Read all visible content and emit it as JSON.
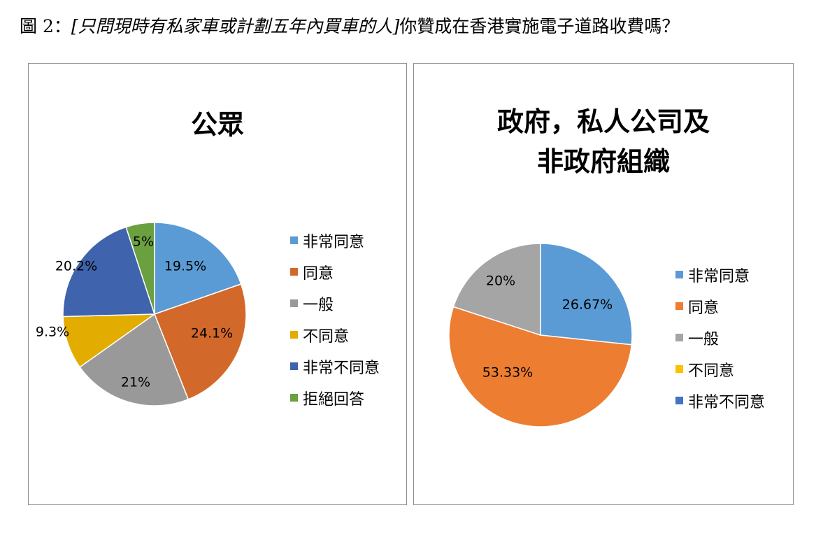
{
  "figure_title": {
    "prefix": "圖 2：",
    "italic_part": "[只問現時有私家車或計劃五年內買車的人]",
    "question": "你贊成在香港實施電子道路收費嗎？"
  },
  "chart_data": [
    {
      "type": "pie",
      "title": "公眾",
      "categories": [
        "非常同意",
        "同意",
        "一般",
        "不同意",
        "非常不同意",
        "拒絕回答"
      ],
      "values": [
        19.5,
        24.1,
        21,
        9.3,
        20.2,
        5
      ],
      "data_labels": [
        "19.5%",
        "24.1%",
        "21%",
        "9.3%",
        "20.2%",
        "5%"
      ],
      "colors": [
        "#5b9bd5",
        "#d2692a",
        "#999999",
        "#e2ac00",
        "#3f63ad",
        "#6aa03f"
      ],
      "legend_colors": [
        "#5b9bd5",
        "#d2692a",
        "#999999",
        "#e2ac00",
        "#3f63ad",
        "#6aa03f"
      ],
      "legend_position": "right",
      "start_angle_deg": 0,
      "direction": "clockwise"
    },
    {
      "type": "pie",
      "title_lines": [
        "政府，私人公司及",
        "非政府組織"
      ],
      "categories": [
        "非常同意",
        "同意",
        "一般",
        "不同意",
        "非常不同意"
      ],
      "values": [
        26.67,
        53.33,
        20,
        0,
        0
      ],
      "data_labels": [
        "26.67%",
        "53.33%",
        "20%",
        "",
        ""
      ],
      "colors": [
        "#5b9bd5",
        "#ed7d31",
        "#a5a5a5",
        "#ffc000",
        "#4472c4"
      ],
      "legend_colors": [
        "#5b9bd5",
        "#ed7d31",
        "#a5a5a5",
        "#ffc000",
        "#4472c4"
      ],
      "legend_position": "right",
      "start_angle_deg": 0,
      "direction": "clockwise"
    }
  ]
}
